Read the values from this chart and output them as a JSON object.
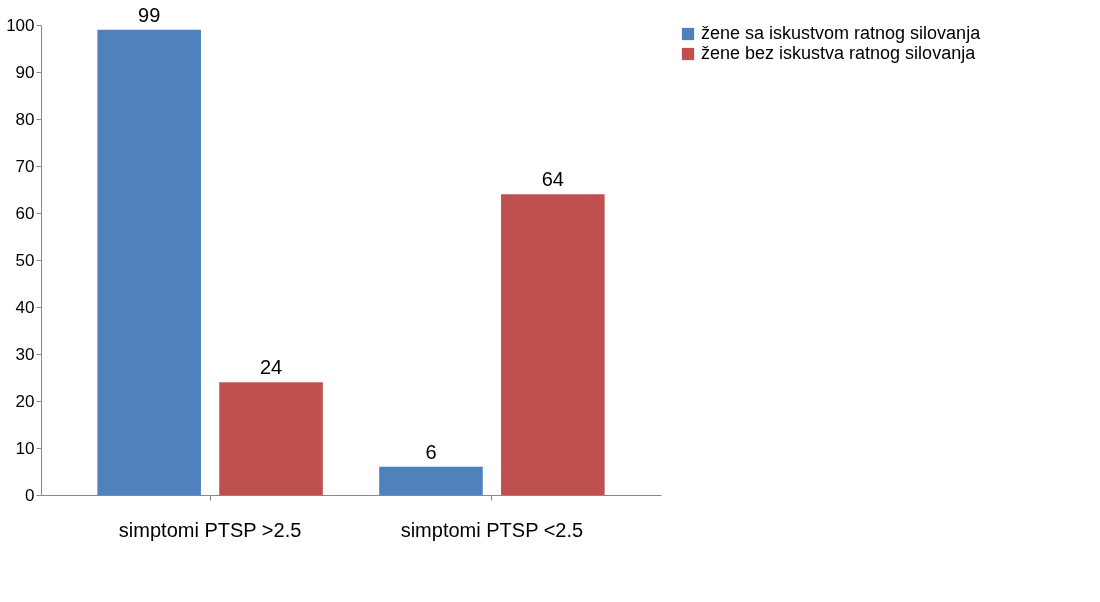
{
  "chart_data": {
    "type": "bar",
    "categories": [
      "simptomi PTSP >2.5",
      "simptomi PTSP <2.5"
    ],
    "series": [
      {
        "name": "žene sa iskustvom ratnog silovanja",
        "color": "#4f81bd",
        "values": [
          99,
          6
        ]
      },
      {
        "name": "žene bez iskustva ratnog silovanja",
        "color": "#c0504d",
        "values": [
          24,
          64
        ]
      }
    ],
    "ylim": [
      0,
      100
    ],
    "yticks": [
      0,
      10,
      20,
      30,
      40,
      50,
      60,
      70,
      80,
      90,
      100
    ],
    "grid": false,
    "legend": "right",
    "data_labels": true
  }
}
